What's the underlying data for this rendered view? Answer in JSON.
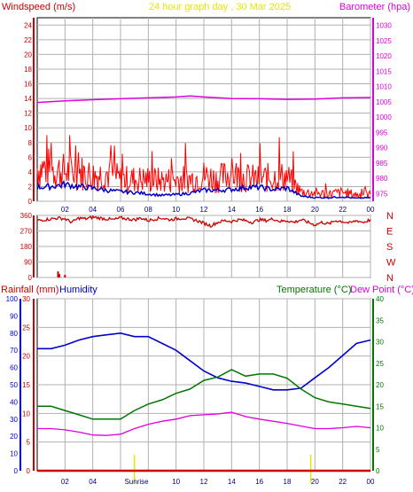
{
  "header": {
    "left": "Windspeed (m/s)",
    "center": "24 hour graph day , 30 Mar 2025",
    "right": "Barometer (hpa)"
  },
  "colors": {
    "wind": "#ff0000",
    "wind_avg": "#0000cc",
    "barometer": "#dd00dd",
    "direction": "#cc0000",
    "rainfall": "#cc0000",
    "humidity": "#0000cc",
    "temperature": "#007700",
    "dewpoint": "#dd00dd",
    "sun": "#e6e600",
    "grid": "#b0b0b0"
  },
  "chart_data": [
    {
      "type": "line",
      "x_tick_labels": [
        "02",
        "04",
        "06",
        "08",
        "10",
        "12",
        "14",
        "16",
        "18",
        "20",
        "22",
        "00"
      ],
      "left_axis": {
        "ticks": [
          "0",
          "2",
          "4",
          "6",
          "8",
          "10",
          "12",
          "14",
          "16",
          "18",
          "20",
          "22",
          "24"
        ],
        "ylim": [
          0,
          25
        ]
      },
      "right_axis": {
        "ticks": [
          "975",
          "980",
          "985",
          "990",
          "995",
          "1000",
          "1005",
          "1010",
          "1015",
          "1020",
          "1025",
          "1030"
        ],
        "ylim": [
          972.5,
          1032.5
        ]
      },
      "series": [
        {
          "axis": "left",
          "x": [
            0,
            1,
            2,
            3,
            4,
            5,
            6,
            7,
            8,
            9,
            10,
            11,
            12,
            13,
            14,
            15,
            16,
            17,
            18,
            19,
            20,
            21,
            22,
            23,
            24
          ],
          "values": [
            4.5,
            4.5,
            4.0,
            4.0,
            3.5,
            3.8,
            3.0,
            3.0,
            3.0,
            2.8,
            3.0,
            3.0,
            3.5,
            3.0,
            3.8,
            3.2,
            3.0,
            3.3,
            3.3,
            1.3,
            1.1,
            1.0,
            1.2,
            0.9,
            0.9
          ]
        },
        {
          "axis": "left",
          "x": [
            0,
            1,
            2,
            3,
            4,
            5,
            6,
            7,
            8,
            9,
            10,
            11,
            12,
            13,
            14,
            15,
            16,
            17,
            18,
            19,
            20,
            21,
            22,
            23,
            24
          ],
          "values": [
            1.9,
            2.0,
            2.3,
            2.0,
            1.8,
            1.5,
            1.3,
            1.2,
            1.0,
            0.8,
            0.9,
            1.1,
            1.5,
            1.5,
            1.6,
            1.9,
            1.9,
            1.6,
            1.8,
            0.7,
            0.5,
            0.5,
            0.6,
            0.4,
            0.5
          ]
        },
        {
          "axis": "right",
          "x": [
            0,
            2,
            4,
            6,
            8,
            10,
            11,
            12,
            14,
            16,
            18,
            20,
            22,
            24
          ],
          "values": [
            1004.8,
            1005.3,
            1005.7,
            1006.0,
            1006.3,
            1006.6,
            1006.9,
            1006.6,
            1006.1,
            1006.0,
            1005.8,
            1005.9,
            1006.3,
            1006.4
          ]
        }
      ]
    },
    {
      "type": "scatter",
      "x_tick_labels": [],
      "left_axis": {
        "ticks": [
          "0",
          "90",
          "180",
          "270",
          "360"
        ],
        "ylim": [
          0,
          360
        ]
      },
      "right_axis": {
        "ticks": [
          "N",
          "W",
          "S",
          "E",
          "N"
        ]
      },
      "series": [
        {
          "x": [
            0,
            0.5,
            1,
            1.5,
            2,
            2.5,
            3,
            3.5,
            4,
            4.5,
            5,
            5.5,
            6,
            6.5,
            7,
            7.5,
            8,
            8.5,
            9,
            9.5,
            10,
            10.5,
            11,
            11.5,
            12,
            12.5,
            13,
            13.5,
            14,
            14.5,
            15,
            15.5,
            16,
            16.5,
            17,
            17.5,
            18,
            18.5,
            19,
            19.5,
            20,
            20.5,
            21,
            21.5,
            22,
            22.5,
            23,
            23.5,
            24
          ],
          "values": [
            330,
            335,
            340,
            345,
            340,
            320,
            345,
            340,
            350,
            345,
            340,
            335,
            345,
            340,
            335,
            345,
            330,
            340,
            345,
            335,
            340,
            345,
            340,
            330,
            315,
            300,
            320,
            330,
            325,
            335,
            330,
            320,
            335,
            330,
            340,
            325,
            330,
            320,
            335,
            320,
            305,
            320,
            310,
            330,
            325,
            315,
            330,
            320,
            335
          ]
        }
      ],
      "rain_marks": {
        "x": [
          1.5,
          1.6,
          2.0
        ],
        "values": [
          35,
          20,
          15
        ]
      }
    },
    {
      "type": "line",
      "x_tick_labels": [
        "02",
        "04",
        "Sunrise",
        "10",
        "12",
        "14",
        "16",
        "18",
        "20",
        "22",
        "00"
      ],
      "left_axis_outer": {
        "ticks": [
          "0",
          "10",
          "20",
          "30",
          "40",
          "50",
          "60",
          "70",
          "80",
          "90",
          "100"
        ],
        "ylim": [
          0,
          100
        ]
      },
      "left_axis_inner": {
        "ticks": [
          "0",
          "5",
          "10",
          "15",
          "20",
          "25",
          "30"
        ],
        "ylim": [
          0,
          30
        ]
      },
      "right_axis": {
        "ticks": [
          "0",
          "5",
          "10",
          "15",
          "20",
          "25",
          "30",
          "35",
          "40"
        ],
        "ylim": [
          0,
          40
        ]
      },
      "legend_left": [
        "Rainfall (mm)",
        "Humidity"
      ],
      "legend_right": [
        "Temperature (°C)",
        "Dew Point (°C)"
      ],
      "sun_markers": {
        "sunrise": 7.0,
        "sunset": 19.7
      },
      "series": [
        {
          "axis": "outer",
          "x": [
            0,
            1,
            2,
            3,
            4,
            5,
            6,
            7,
            8,
            9,
            10,
            11,
            12,
            13,
            14,
            15,
            16,
            17,
            18,
            19,
            20,
            21,
            22,
            23,
            24
          ],
          "values": [
            71,
            71,
            73,
            76,
            78,
            79,
            80,
            78,
            78,
            74,
            70,
            64,
            58,
            54,
            52,
            51,
            49,
            47,
            47,
            48,
            54,
            60,
            67,
            74,
            76
          ]
        },
        {
          "axis": "right",
          "x": [
            0,
            1,
            2,
            3,
            4,
            5,
            6,
            7,
            8,
            9,
            10,
            11,
            12,
            13,
            14,
            15,
            16,
            17,
            18,
            19,
            20,
            21,
            22,
            23,
            24
          ],
          "values": [
            15,
            15,
            14,
            13,
            12,
            12,
            12,
            14,
            15.5,
            16.5,
            18,
            19,
            21,
            21.8,
            23.5,
            22,
            22.5,
            22.5,
            21.5,
            19,
            17,
            16,
            15.5,
            15,
            14.5
          ]
        },
        {
          "axis": "right",
          "x": [
            0,
            1,
            2,
            3,
            4,
            5,
            6,
            7,
            8,
            9,
            10,
            11,
            12,
            13,
            14,
            15,
            16,
            17,
            18,
            19,
            20,
            21,
            22,
            23,
            24
          ],
          "values": [
            9.8,
            9.8,
            9.5,
            9,
            8.3,
            8.2,
            8.5,
            9.8,
            10.8,
            11.5,
            12,
            12.8,
            13,
            13.2,
            13.6,
            12.6,
            12,
            11.5,
            11,
            10.4,
            9.8,
            9.8,
            10,
            10.3,
            10
          ]
        },
        {
          "axis": "inner",
          "x": [
            0,
            24
          ],
          "values": [
            0,
            0
          ]
        }
      ]
    }
  ]
}
